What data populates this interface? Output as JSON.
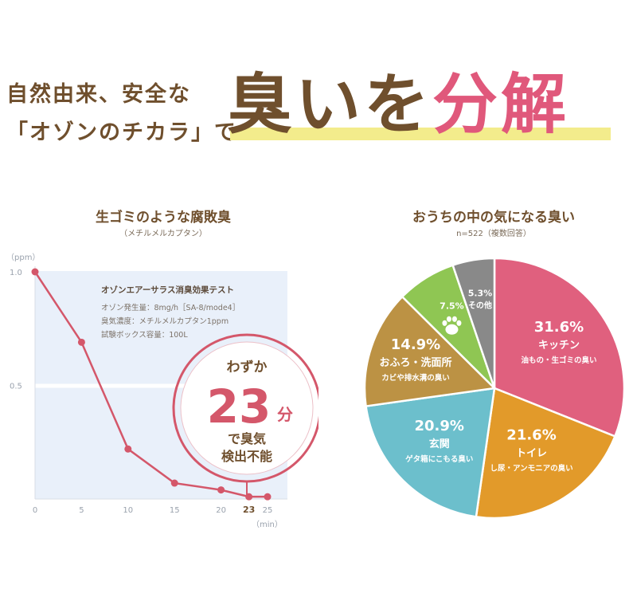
{
  "headline": {
    "line1": "自然由来、安全な",
    "line2": "「オゾンのチカラ」で",
    "big_main": "臭いを",
    "big_accent": "分解"
  },
  "colors": {
    "brown": "#6f4f2d",
    "pink": "#e0587b",
    "line": "#d4576a",
    "highlight": "#f3ec8c",
    "panel": "#e9f0fa"
  },
  "chart_data": [
    {
      "type": "line",
      "title": "生ゴミのような腐敗臭",
      "subtitle": "（メチルメルカプタン）",
      "ylabel": "（ppm）",
      "xlabel": "（min）",
      "ylim": [
        0,
        1.0
      ],
      "xlim": [
        0,
        25
      ],
      "yticks": [
        "1.0",
        "0.5"
      ],
      "xticks": [
        "0",
        "5",
        "10",
        "15",
        "20",
        "23",
        "25"
      ],
      "x": [
        0,
        5,
        10,
        15,
        20,
        23,
        25
      ],
      "y": [
        1.0,
        0.69,
        0.22,
        0.07,
        0.04,
        0.01,
        0.01
      ],
      "grid": false,
      "test_box": {
        "title": "オゾンエアーサラス消臭効果テスト",
        "lines": [
          "オゾン発生量：8mg/h［SA-8/mode4］",
          "臭気濃度：メチルメルカプタン1ppm",
          "試験ボックス容量：100L"
        ]
      },
      "callout": {
        "top": "わずか",
        "number": "23",
        "unit": "分",
        "bottom1": "で臭気",
        "bottom2": "検出不能"
      }
    },
    {
      "type": "pie",
      "title": "おうちの中の気になる臭い",
      "subtitle": "n=522（複数回答）",
      "slices": [
        {
          "value": 31.6,
          "label": "31.6%",
          "name": "キッチン",
          "desc": "油もの・生ゴミの臭い",
          "color": "#e0607e"
        },
        {
          "value": 21.6,
          "label": "21.6%",
          "name": "トイレ",
          "desc": "し尿・アンモニアの臭い",
          "color": "#e29a2a"
        },
        {
          "value": 20.9,
          "label": "20.9%",
          "name": "玄関",
          "desc": "ゲタ箱にこもる臭い",
          "color": "#6cbfcc"
        },
        {
          "value": 14.9,
          "label": "14.9%",
          "name": "おふろ・洗面所",
          "desc": "カビや排水溝の臭い",
          "color": "#bc9244"
        },
        {
          "value": 7.5,
          "label": "7.5%",
          "name": "",
          "desc": "",
          "color": "#8fc653",
          "icon": "paw-icon"
        },
        {
          "value": 5.3,
          "label": "5.3%",
          "name": "その他",
          "desc": "",
          "color": "#898989"
        }
      ]
    }
  ]
}
